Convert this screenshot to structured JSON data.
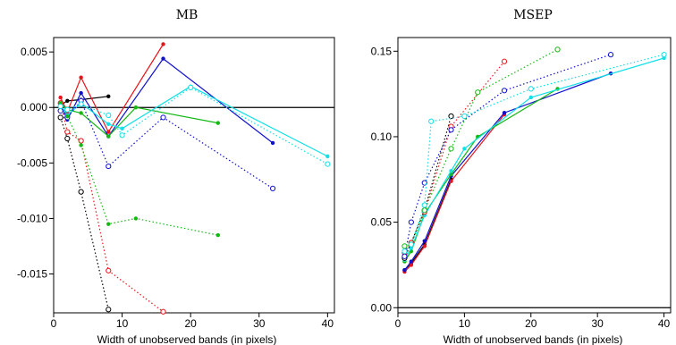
{
  "figure": {
    "panels": [
      {
        "title": "MB",
        "xlabel": "Width of unobserved bands (in pixels)"
      },
      {
        "title": "MSEP",
        "xlabel": "Width of unobserved bands (in pixels)"
      }
    ],
    "colors": {
      "black": "#000000",
      "red": "#e8141b",
      "blue": "#1010d0",
      "green": "#14b814",
      "cyan": "#10e0e8"
    }
  },
  "chart_data": [
    {
      "type": "line",
      "title": "MB",
      "xlabel": "Width of unobserved bands (in pixels)",
      "ylabel": "",
      "xlim": [
        0,
        41
      ],
      "ylim": [
        -0.0185,
        0.0063
      ],
      "xticks": [
        0,
        10,
        20,
        30,
        40
      ],
      "xtick_labels": [
        "0",
        "10",
        "20",
        "30",
        "40"
      ],
      "yticks": [
        -0.015,
        -0.01,
        -0.005,
        0.0,
        0.005
      ],
      "ytick_labels": [
        "-0.015",
        "-0.010",
        "-0.005",
        "0.000",
        "0.005"
      ],
      "reference_line_y": 0,
      "grid": false,
      "series": [
        {
          "color": "black",
          "style": "solid",
          "marker": "filled",
          "x": [
            1,
            2,
            4,
            8
          ],
          "y": [
            0.0002,
            0.0006,
            0.0007,
            0.001
          ]
        },
        {
          "color": "red",
          "style": "solid",
          "marker": "filled",
          "x": [
            1,
            2,
            4,
            8,
            16
          ],
          "y": [
            0.0009,
            -0.0004,
            0.0027,
            -0.0022,
            0.0057
          ]
        },
        {
          "color": "blue",
          "style": "solid",
          "marker": "filled",
          "x": [
            1,
            2,
            4,
            8,
            16,
            32
          ],
          "y": [
            0.0003,
            -0.0011,
            0.0013,
            -0.0026,
            0.0044,
            -0.0032
          ]
        },
        {
          "color": "green",
          "style": "solid",
          "marker": "filled",
          "x": [
            1,
            2,
            4,
            8,
            12,
            24
          ],
          "y": [
            0.0004,
            -0.0002,
            -0.0005,
            -0.0026,
            0.0,
            -0.0014
          ]
        },
        {
          "color": "cyan",
          "style": "solid",
          "marker": "filled",
          "x": [
            1,
            2,
            4,
            8,
            10,
            20,
            40
          ],
          "y": [
            0.0001,
            -0.0007,
            0.0004,
            -0.0015,
            -0.0019,
            0.0019,
            -0.0044
          ]
        },
        {
          "color": "black",
          "style": "dotted",
          "marker": "open",
          "x": [
            1,
            2,
            4,
            8
          ],
          "y": [
            -0.0009,
            -0.0028,
            -0.0076,
            -0.0182
          ]
        },
        {
          "color": "red",
          "style": "dotted",
          "marker": "open",
          "x": [
            1,
            2,
            4,
            8,
            16
          ],
          "y": [
            0.0004,
            -0.0022,
            -0.003,
            -0.0147,
            -0.0184
          ]
        },
        {
          "color": "blue",
          "style": "dotted",
          "marker": "open",
          "x": [
            1,
            2,
            4,
            8,
            16,
            32
          ],
          "y": [
            -0.0003,
            -0.0009,
            0.0006,
            -0.0053,
            -0.0009,
            -0.0073
          ]
        },
        {
          "color": "green",
          "style": "dotted",
          "marker": "filled",
          "x": [
            1,
            2,
            4,
            8,
            12,
            24
          ],
          "y": [
            0.0004,
            -0.0008,
            -0.0034,
            -0.0105,
            -0.01,
            -0.0115
          ]
        },
        {
          "color": "cyan",
          "style": "dotted",
          "marker": "open",
          "x": [
            1,
            2,
            4,
            8,
            10,
            20,
            40
          ],
          "y": [
            0.0001,
            -0.0002,
            0.0003,
            -0.0007,
            -0.0025,
            0.0018,
            -0.0051
          ]
        }
      ]
    },
    {
      "type": "line",
      "title": "MSEP",
      "xlabel": "Width of unobserved bands (in pixels)",
      "ylabel": "",
      "xlim": [
        0,
        41
      ],
      "ylim": [
        -0.003,
        0.158
      ],
      "xticks": [
        0,
        10,
        20,
        30,
        40
      ],
      "xtick_labels": [
        "0",
        "10",
        "20",
        "30",
        "40"
      ],
      "yticks": [
        0.0,
        0.05,
        0.1,
        0.15
      ],
      "ytick_labels": [
        "0.00",
        "0.05",
        "0.10",
        "0.15"
      ],
      "reference_line_y": 0,
      "grid": false,
      "series": [
        {
          "color": "black",
          "style": "solid",
          "marker": "filled",
          "x": [
            1,
            2,
            4,
            8
          ],
          "y": [
            0.022,
            0.026,
            0.037,
            0.075
          ]
        },
        {
          "color": "red",
          "style": "solid",
          "marker": "filled",
          "x": [
            1,
            2,
            4,
            8,
            16
          ],
          "y": [
            0.021,
            0.025,
            0.036,
            0.074,
            0.113
          ]
        },
        {
          "color": "blue",
          "style": "solid",
          "marker": "filled",
          "x": [
            1,
            2,
            4,
            8,
            16,
            32
          ],
          "y": [
            0.022,
            0.027,
            0.039,
            0.077,
            0.114,
            0.137
          ]
        },
        {
          "color": "green",
          "style": "solid",
          "marker": "filled",
          "x": [
            1,
            2,
            4,
            8,
            12,
            24
          ],
          "y": [
            0.027,
            0.033,
            0.055,
            0.078,
            0.1,
            0.128
          ]
        },
        {
          "color": "cyan",
          "style": "solid",
          "marker": "filled",
          "x": [
            1,
            2,
            4,
            8,
            10,
            20,
            40
          ],
          "y": [
            0.028,
            0.035,
            0.054,
            0.08,
            0.093,
            0.123,
            0.146
          ]
        },
        {
          "color": "black",
          "style": "dotted",
          "marker": "open",
          "x": [
            1,
            2,
            4,
            8
          ],
          "y": [
            0.029,
            0.038,
            0.057,
            0.112
          ]
        },
        {
          "color": "red",
          "style": "dotted",
          "marker": "open",
          "x": [
            1,
            2,
            4,
            8,
            16
          ],
          "y": [
            0.032,
            0.038,
            0.056,
            0.106,
            0.144
          ]
        },
        {
          "color": "blue",
          "style": "dotted",
          "marker": "open",
          "x": [
            1,
            2,
            4,
            8,
            16,
            32
          ],
          "y": [
            0.03,
            0.05,
            0.073,
            0.104,
            0.127,
            0.148
          ]
        },
        {
          "color": "green",
          "style": "dotted",
          "marker": "open",
          "x": [
            1,
            2,
            4,
            8,
            12,
            24
          ],
          "y": [
            0.036,
            0.037,
            0.057,
            0.093,
            0.126,
            0.151
          ]
        },
        {
          "color": "cyan",
          "style": "dotted",
          "marker": "open",
          "x": [
            1,
            2,
            4,
            5,
            10,
            20,
            40
          ],
          "y": [
            0.033,
            0.037,
            0.06,
            0.109,
            0.112,
            0.128,
            0.148
          ]
        }
      ]
    }
  ]
}
